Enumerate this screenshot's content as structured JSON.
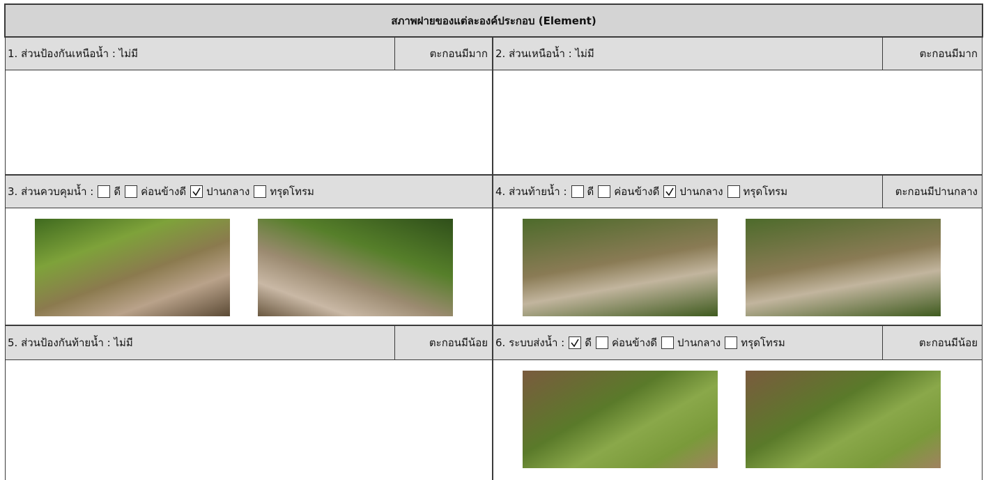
{
  "title": "สภาพฝายของแต่ละองค์ประกอบ (Element)",
  "sections": [
    {
      "label": "1. ส่วนป้องกันเหนือน้ำ : ไม่มี",
      "status": "ตะกอนมีมาก"
    },
    {
      "label": "2. ส่วนเหนือน้ำ : ไม่มี",
      "status": "ตะกอนมีมาก"
    },
    {
      "label": "3. ส่วนควบคุมน้ำ :",
      "options": [
        {
          "label": "ดี",
          "checked": false
        },
        {
          "label": "ค่อนข้างดี",
          "checked": false
        },
        {
          "label": "ปานกลาง",
          "checked": true
        },
        {
          "label": "ทรุดโทรม",
          "checked": false
        }
      ]
    },
    {
      "label": "4. ส่วนท้ายน้ำ :",
      "options": [
        {
          "label": "ดี",
          "checked": false
        },
        {
          "label": "ค่อนข้างดี",
          "checked": false
        },
        {
          "label": "ปานกลาง",
          "checked": true
        },
        {
          "label": "ทรุดโทรม",
          "checked": false
        }
      ],
      "status": "ตะกอนมีปานกลาง"
    },
    {
      "label": "5. ส่วนป้องกันท้ายน้ำ : ไม่มี",
      "status": "ตะกอนมีน้อย"
    },
    {
      "label": "6. ระบบส่งน้ำ :",
      "options": [
        {
          "label": "ดี",
          "checked": true
        },
        {
          "label": "ค่อนข้างดี",
          "checked": false
        },
        {
          "label": "ปานกลาง",
          "checked": false
        },
        {
          "label": "ทรุดโทรม",
          "checked": false
        }
      ],
      "status": "ตะกอนมีน้อย"
    }
  ]
}
